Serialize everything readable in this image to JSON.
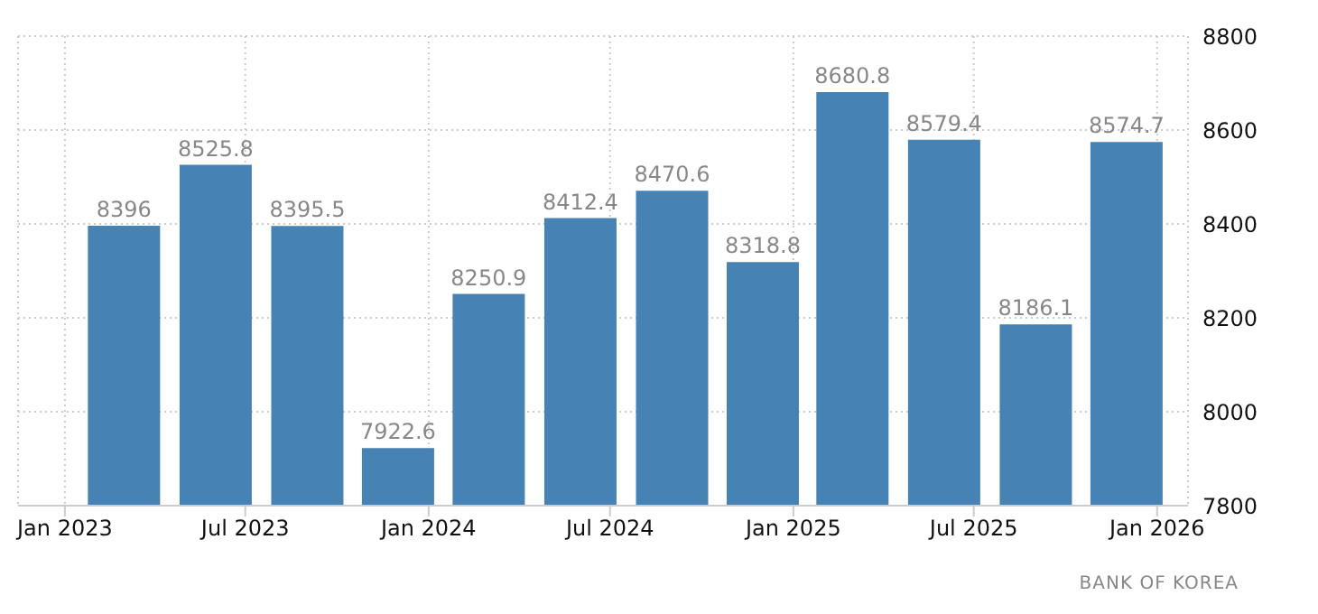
{
  "chart_data": {
    "type": "bar",
    "x": [
      "2023-03",
      "2023-06",
      "2023-09",
      "2023-12",
      "2024-03",
      "2024-06",
      "2024-09",
      "2024-12",
      "2025-03",
      "2025-06",
      "2025-09",
      "2025-12"
    ],
    "values": [
      8396,
      8525.8,
      8395.5,
      7922.6,
      8250.9,
      8412.4,
      8470.6,
      8318.8,
      8680.8,
      8579.4,
      8186.1,
      8574.7
    ],
    "color": "#4682b4",
    "xlim": [
      "2022-11-15",
      "2026-02-01"
    ],
    "xticks": [
      {
        "value": "2023-01",
        "label": "Jan 2023"
      },
      {
        "value": "2023-07",
        "label": "Jul 2023"
      },
      {
        "value": "2024-01",
        "label": "Jan 2024"
      },
      {
        "value": "2024-07",
        "label": "Jul 2024"
      },
      {
        "value": "2025-01",
        "label": "Jan 2025"
      },
      {
        "value": "2025-07",
        "label": "Jul 2025"
      },
      {
        "value": "2026-01",
        "label": "Jan 2026"
      }
    ],
    "ylim": [
      7800,
      8800
    ],
    "yticks": [
      7800,
      8000,
      8200,
      8400,
      8600,
      8800
    ],
    "grid": true,
    "data_labels": true,
    "annotations": [
      "BANK OF KOREA"
    ]
  }
}
